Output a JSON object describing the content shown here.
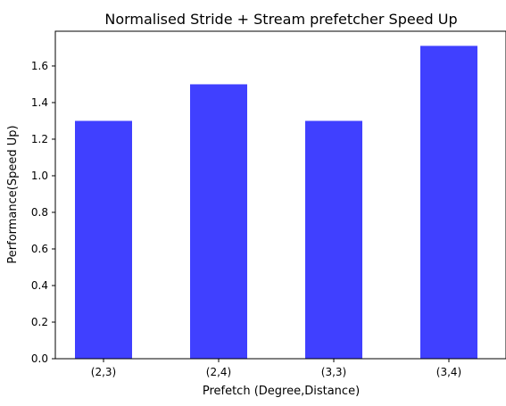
{
  "chart_data": {
    "type": "bar",
    "title": "Normalised Stride + Stream prefetcher Speed Up",
    "xlabel": "Prefetch (Degree,Distance)",
    "ylabel": "Performance(Speed Up)",
    "categories": [
      "(2,3)",
      "(2,4)",
      "(3,3)",
      "(3,4)"
    ],
    "values": [
      1.3,
      1.5,
      1.3,
      1.71
    ],
    "ylim": [
      0,
      1.79
    ],
    "yticks": [
      0.0,
      0.2,
      0.4,
      0.6,
      0.8,
      1.0,
      1.2,
      1.4,
      1.6
    ],
    "ytick_labels": [
      "0.0",
      "0.2",
      "0.4",
      "0.6",
      "0.8",
      "1.0",
      "1.2",
      "1.4",
      "1.6"
    ],
    "bar_color": "#4040ff",
    "grid": false,
    "legend": "none"
  }
}
